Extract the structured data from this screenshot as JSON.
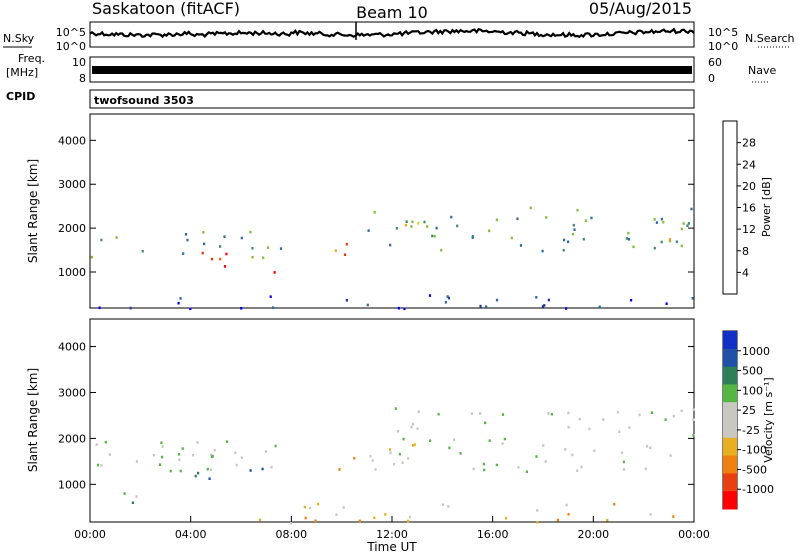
{
  "header": {
    "station": "Saskatoon (fitACF)",
    "beam": "Beam 10",
    "date": "05/Aug/2015"
  },
  "side_labels": {
    "nsky": "N.Sky",
    "freq_line1": "Freq.",
    "freq_line2": "[MHz]",
    "cpid": "CPID",
    "nsearch": "N.Search",
    "nave": "Nave"
  },
  "noise_panel": {
    "left_ticks": [
      "10^5",
      "10^0"
    ],
    "right_ticks": [
      "10^5",
      "10^0"
    ]
  },
  "freq_panel": {
    "left_ticks": [
      "10",
      "8"
    ],
    "right_ticks": [
      "60",
      "0"
    ]
  },
  "cpid_text": "twofsound 3503",
  "x_axis": {
    "label": "Time UT",
    "ticks": [
      "00:00",
      "04:00",
      "08:00",
      "12:00",
      "16:00",
      "20:00",
      "00:00"
    ]
  },
  "power_panel": {
    "ylabel": "Slant Range [km]",
    "y_ticks": [
      "1000",
      "2000",
      "3000",
      "4000"
    ],
    "colorbar_label": "Power [dB]",
    "colorbar_ticks": [
      "4",
      "8",
      "12",
      "16",
      "20",
      "24",
      "28"
    ]
  },
  "velocity_panel": {
    "ylabel": "Slant Range [km]",
    "y_ticks": [
      "1000",
      "2000",
      "3000",
      "4000"
    ],
    "colorbar_label": "Velocity [m s⁻¹]",
    "colorbar_ticks": [
      "1000",
      "500",
      "100",
      "25",
      "-25",
      "-100",
      "-500",
      "-1000"
    ]
  },
  "chart_data": {
    "type": "heatmap",
    "x_range_hours": [
      0,
      24
    ],
    "y_range_km": [
      180,
      4600
    ],
    "power_colors": [
      "#0000ff",
      "#1f3a9e",
      "#2f6aa0",
      "#3e8e63",
      "#7fbf3a",
      "#d8d21e",
      "#f0a21a",
      "#ef6a12",
      "#e43a0c",
      "#ff0000"
    ],
    "velocity_colors": [
      "#1030c8",
      "#2050a8",
      "#2e7e5a",
      "#55b545",
      "#c8c8c0",
      "#c8c8c0",
      "#e8b020",
      "#f08010",
      "#e84010",
      "#ff0000"
    ],
    "power_regions": [
      {
        "t0": 0.0,
        "t1": 7.6,
        "r0": 1300,
        "r1": 1950,
        "level": 3
      },
      {
        "t0": 3.8,
        "t1": 6.6,
        "r0": 1000,
        "r1": 1500,
        "level": 8
      },
      {
        "t0": 7.0,
        "t1": 7.6,
        "r0": 900,
        "r1": 1200,
        "level": 8
      },
      {
        "t0": 9.6,
        "t1": 10.6,
        "r0": 1250,
        "r1": 1700,
        "level": 7
      },
      {
        "t0": 11.0,
        "t1": 24.0,
        "r0": 1500,
        "r1": 2500,
        "level": 3
      },
      {
        "t0": 12.0,
        "t1": 14.0,
        "r0": 1800,
        "r1": 2300,
        "level": 6
      },
      {
        "t0": 21.5,
        "t1": 24.0,
        "r0": 1350,
        "r1": 1800,
        "level": 6
      },
      {
        "t0": 0.0,
        "t1": 24.0,
        "r0": 180,
        "r1": 500,
        "level": 1
      }
    ],
    "velocity_regions": [
      {
        "t0": 0.0,
        "t1": 7.6,
        "r0": 1300,
        "r1": 2000,
        "level": 4
      },
      {
        "t0": 2.0,
        "t1": 7.2,
        "r0": 1100,
        "r1": 1700,
        "level": 2
      },
      {
        "t0": 0.0,
        "t1": 3.0,
        "r0": 600,
        "r1": 950,
        "level": 3
      },
      {
        "t0": 9.5,
        "t1": 10.5,
        "r0": 1200,
        "r1": 1700,
        "level": 7
      },
      {
        "t0": 11.0,
        "t1": 24.0,
        "r0": 1300,
        "r1": 2700,
        "level": 4
      },
      {
        "t0": 11.5,
        "t1": 13.2,
        "r0": 1700,
        "r1": 2200,
        "level": 7
      },
      {
        "t0": 6.0,
        "t1": 24.0,
        "r0": 180,
        "r1": 600,
        "level": 6
      }
    ]
  }
}
